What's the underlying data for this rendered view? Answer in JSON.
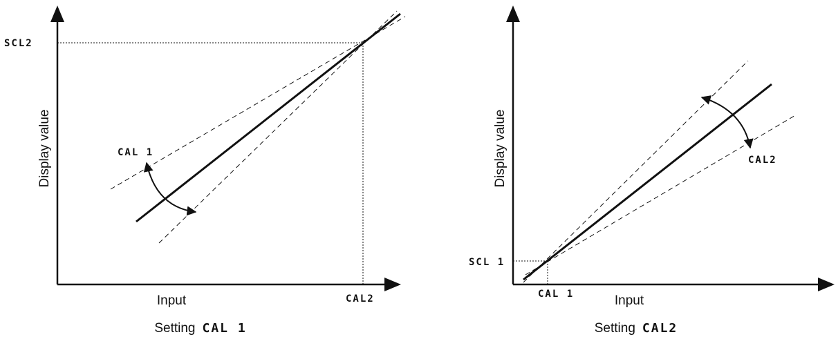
{
  "left": {
    "y_axis_label": "Display value",
    "x_axis_label": "Input",
    "y_marker": "SCL2",
    "x_marker": "CAL2",
    "pivot_label": "CAL 1",
    "caption_prefix": "Setting",
    "caption_code": "CAL 1"
  },
  "right": {
    "y_axis_label": "Display value",
    "x_axis_label": "Input",
    "y_marker": "SCL 1",
    "x_marker": "CAL 1",
    "pivot_label": "CAL2",
    "caption_prefix": "Setting",
    "caption_code": "CAL2"
  }
}
